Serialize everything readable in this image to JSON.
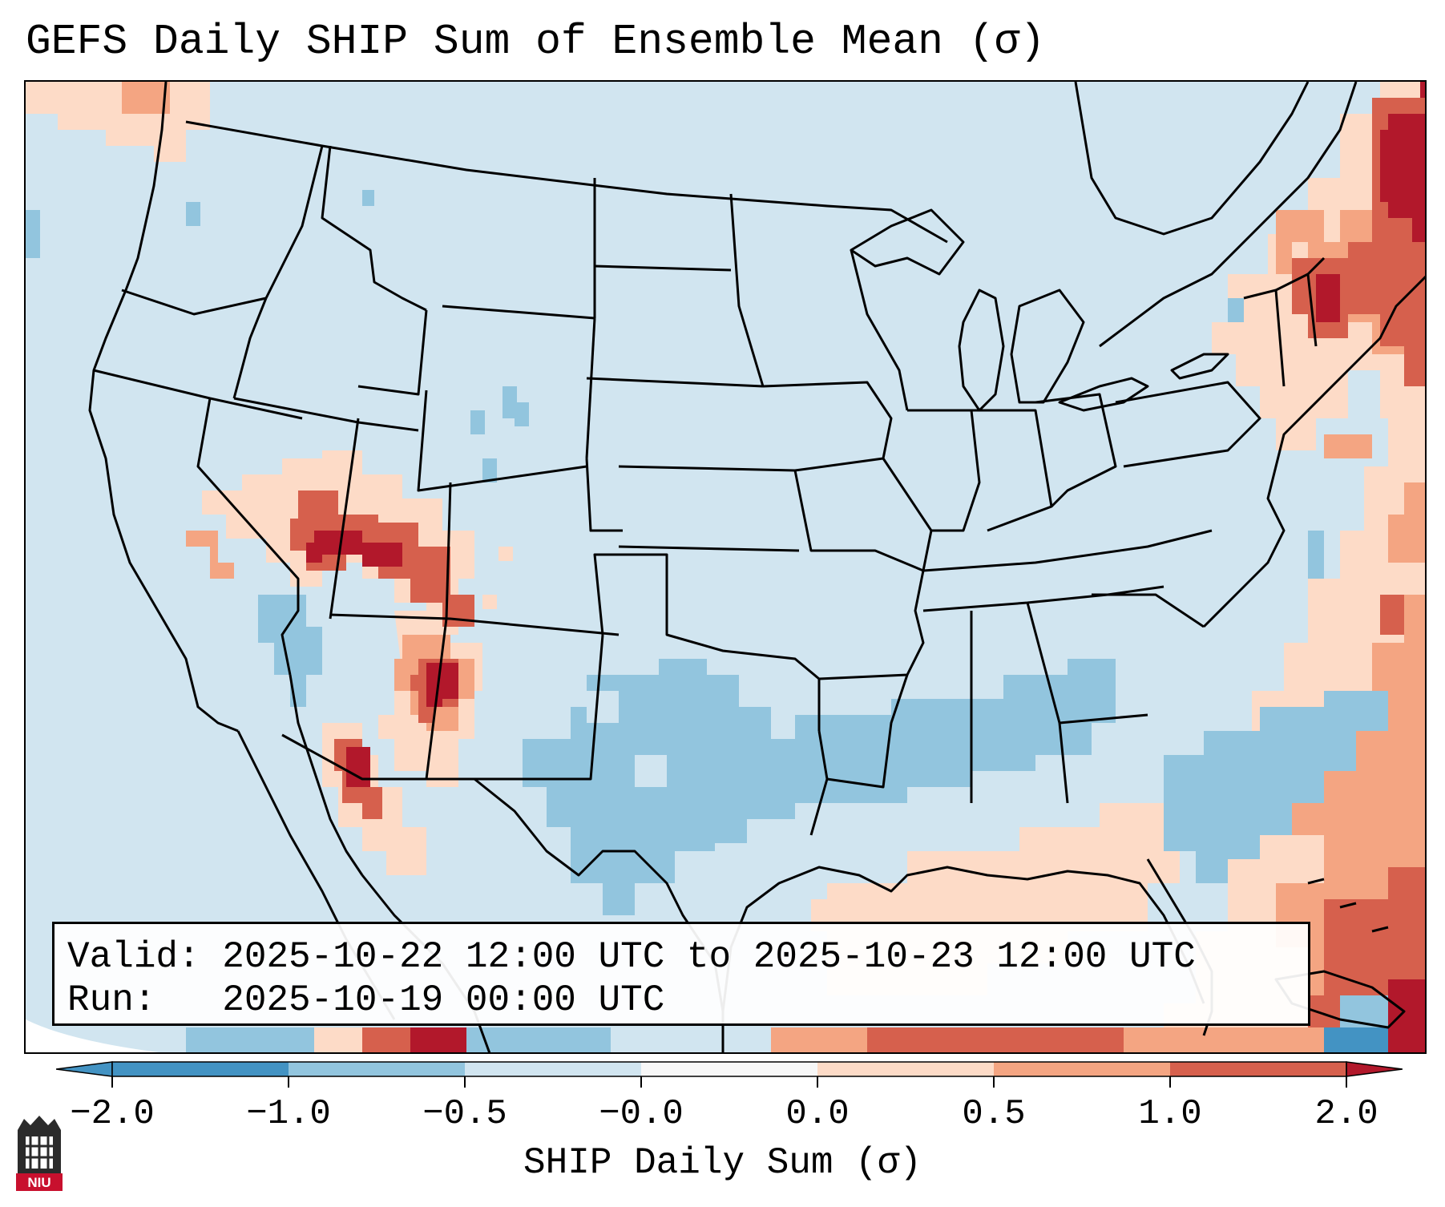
{
  "title": "GEFS Daily SHIP Sum of Ensemble Mean (σ)",
  "info": {
    "valid_line": "Valid: 2025-10-22 12:00 UTC to 2025-10-23 12:00 UTC",
    "run_line": "Run:   2025-10-19 00:00 UTC"
  },
  "colorbar": {
    "title": "SHIP Daily Sum (σ)",
    "tick_labels": [
      "−2.0",
      "−1.0",
      "−0.5",
      "−0.0",
      "0.0",
      "0.5",
      "1.0",
      "2.0"
    ],
    "colors": [
      "#4393c3",
      "#92c5de",
      "#d1e5f0",
      "#f7f7f7",
      "#fddbc7",
      "#f4a582",
      "#d6604d",
      "#b2182b"
    ],
    "extend": "both"
  },
  "logo": {
    "name": "niu-logo",
    "text": "NIU"
  },
  "map": {
    "region": "CONUS",
    "background_color": "#d1e5f0"
  }
}
